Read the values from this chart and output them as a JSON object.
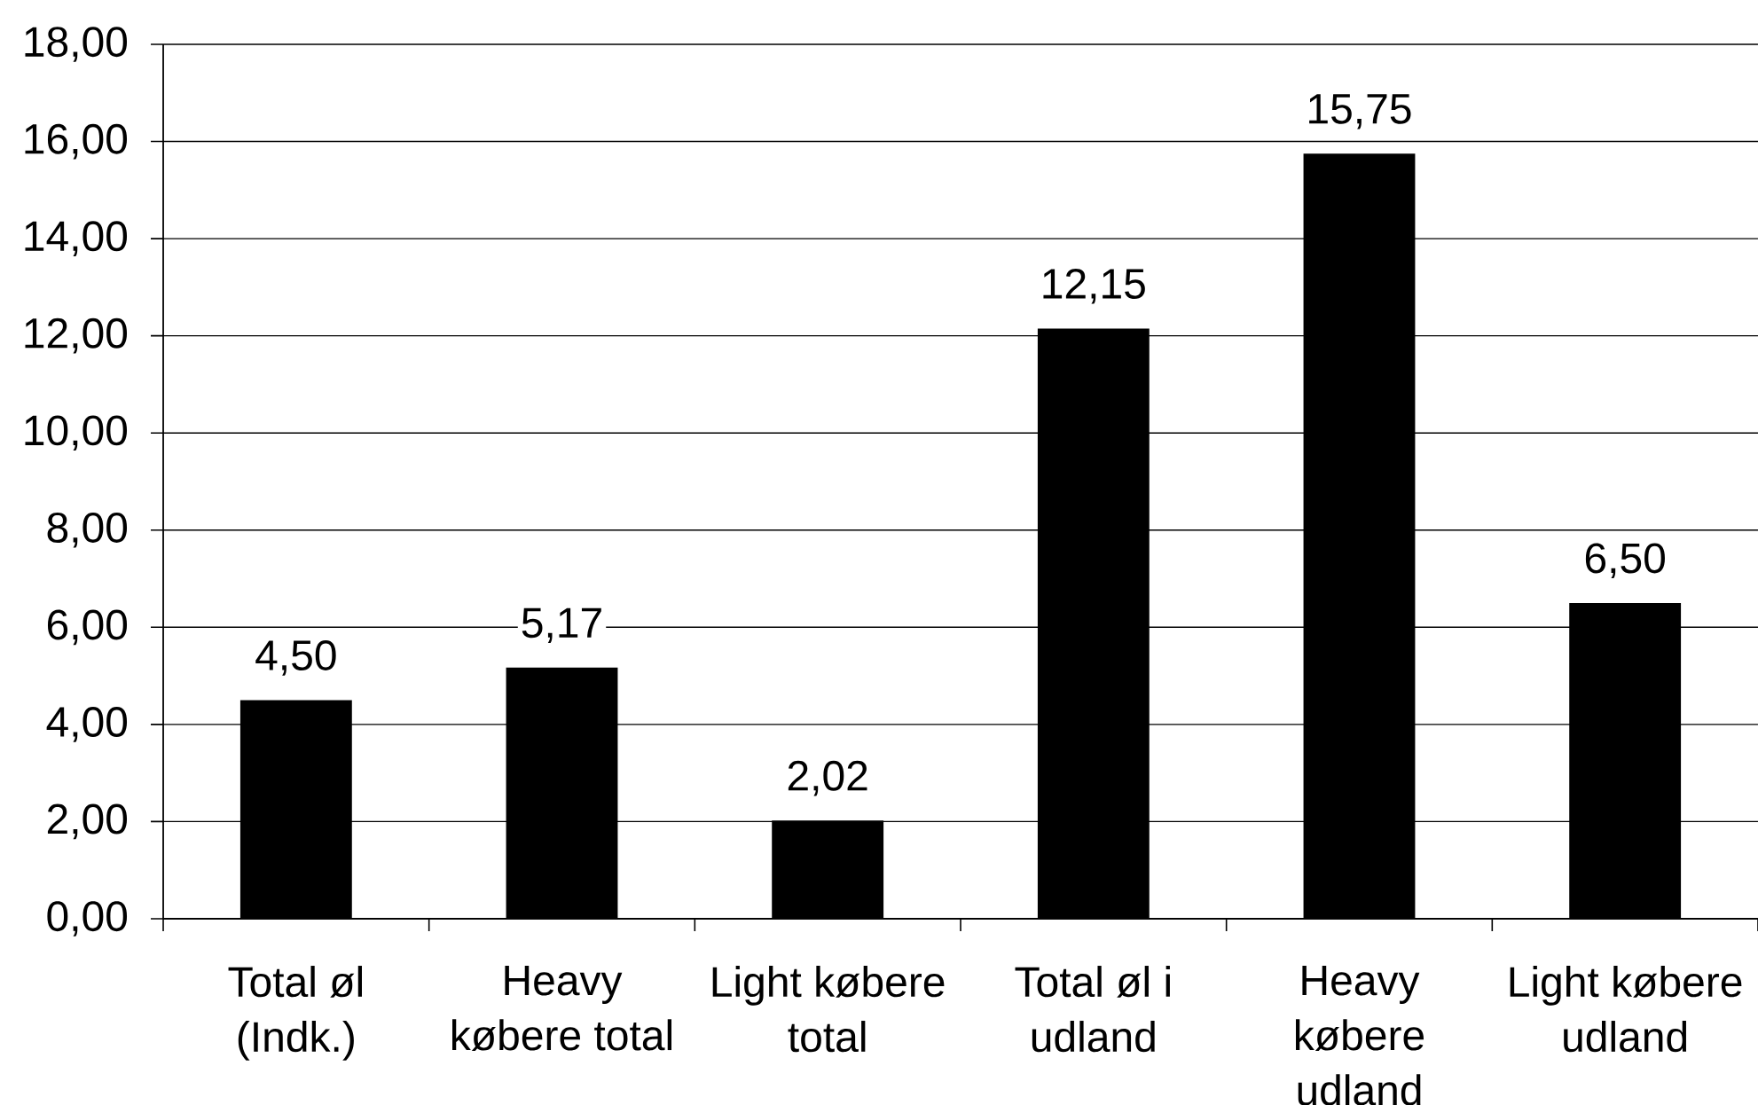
{
  "chart_data": {
    "type": "bar",
    "categories": [
      "Total øl (Indk.)",
      "Heavy købere total",
      "Light købere total",
      "Total øl i udland",
      "Heavy købere udland",
      "Light købere udland"
    ],
    "values": [
      4.5,
      5.17,
      2.02,
      12.15,
      15.75,
      6.5
    ],
    "value_labels": [
      "4,50",
      "5,17",
      "2,02",
      "12,15",
      "15,75",
      "6,50"
    ],
    "color": "#000000",
    "ylim": [
      0,
      18
    ],
    "yticks": [
      {
        "value": 0,
        "label": "0,00"
      },
      {
        "value": 2,
        "label": "2,00"
      },
      {
        "value": 4,
        "label": "4,00"
      },
      {
        "value": 6,
        "label": "6,00"
      },
      {
        "value": 8,
        "label": "8,00"
      },
      {
        "value": 10,
        "label": "10,00"
      },
      {
        "value": 12,
        "label": "12,00"
      },
      {
        "value": 14,
        "label": "14,00"
      },
      {
        "value": 16,
        "label": "16,00"
      },
      {
        "value": 18,
        "label": "18,00"
      }
    ],
    "grid": "y"
  }
}
